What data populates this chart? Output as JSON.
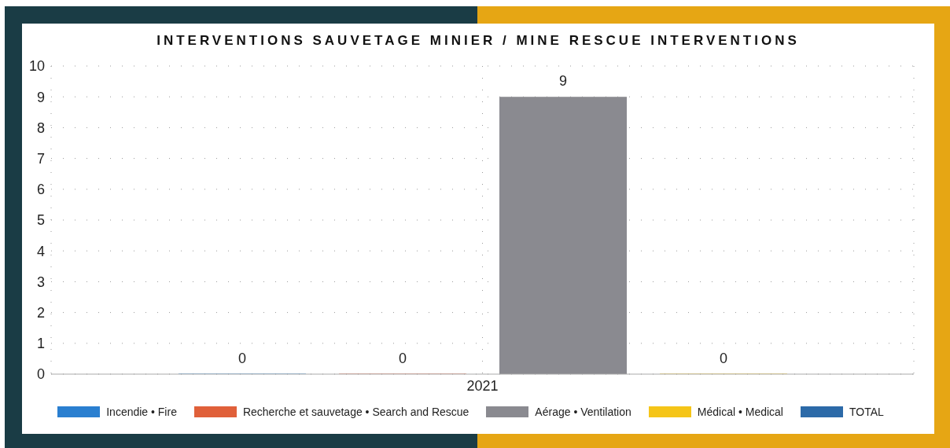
{
  "chart_data": {
    "type": "bar",
    "title": "INTERVENTIONS SAUVETAGE MINIER / MINE RESCUE INTERVENTIONS",
    "categories": [
      "2021"
    ],
    "series": [
      {
        "name": "Incendie • Fire",
        "color": "#2a7fd0",
        "values": [
          0
        ]
      },
      {
        "name": "Recherche et sauvetage • Search and Rescue",
        "color": "#e0603a",
        "values": [
          0
        ]
      },
      {
        "name": "Aérage • Ventilation",
        "color": "#8a8a90",
        "values": [
          9
        ]
      },
      {
        "name": "Médical • Medical",
        "color": "#f5c518",
        "values": [
          0
        ]
      },
      {
        "name": "TOTAL",
        "color": "#2c6aa8",
        "values": [
          null
        ]
      }
    ],
    "ylim": [
      0,
      10
    ],
    "yticks": [
      0,
      1,
      2,
      3,
      4,
      5,
      6,
      7,
      8,
      9,
      10
    ],
    "grid": true,
    "data_labels": true,
    "legend": "bottom"
  }
}
